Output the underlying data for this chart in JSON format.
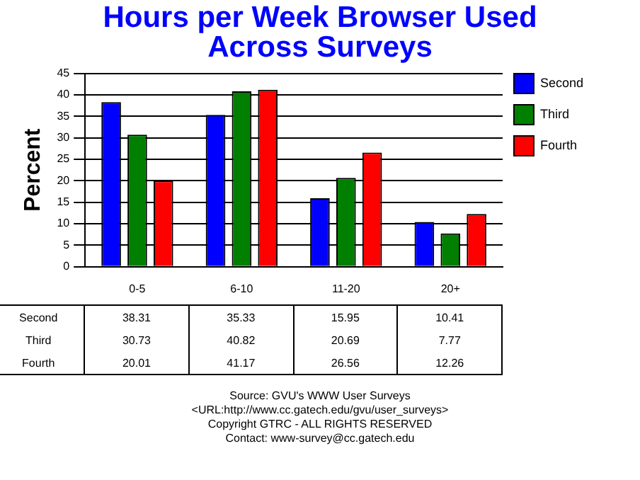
{
  "chart_data": {
    "type": "bar",
    "title": "Hours per Week Browser Used Across Surveys",
    "ylabel": "Percent",
    "categories": [
      "0-5",
      "6-10",
      "11-20",
      "20+"
    ],
    "series": [
      {
        "name": "Second",
        "color": "#0000ff",
        "values": [
          38.31,
          35.33,
          15.95,
          10.41
        ]
      },
      {
        "name": "Third",
        "color": "#007f00",
        "values": [
          30.73,
          40.82,
          20.69,
          7.77
        ]
      },
      {
        "name": "Fourth",
        "color": "#ff0000",
        "values": [
          20.01,
          41.17,
          26.56,
          12.26
        ]
      }
    ],
    "ylim": [
      0,
      45
    ],
    "yticks": [
      0,
      5,
      10,
      15,
      20,
      25,
      30,
      35,
      40,
      45
    ],
    "grid": "y",
    "legend": "top right",
    "data_labels": true,
    "annotations": [
      "Source: GVU's WWW User Surveys",
      "<URL:http://www.cc.gatech.edu/gvu/user_surveys>",
      "Copyright GTRC -  ALL RIGHTS RESERVED",
      "Contact: www-survey@cc.gatech.edu"
    ]
  }
}
